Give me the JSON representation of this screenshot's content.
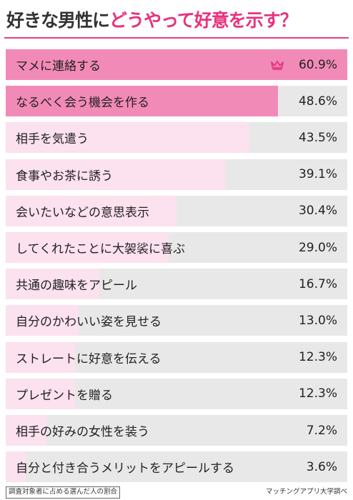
{
  "title_part1": "好きな男性に",
  "title_part2": "どうやって好意を示す？",
  "colors": {
    "accent": "#e8317d",
    "bar_top": "#f28ab7",
    "bar_other": "#fce1ee",
    "track": "#e8e8e8"
  },
  "chart_data": {
    "type": "bar",
    "orientation": "horizontal",
    "title": "好きな男性にどうやって好意を示す？",
    "categories": [
      "マメに連絡する",
      "なるべく会う機会を作る",
      "相手を気遣う",
      "食事やお茶に誘う",
      "会いたいなどの意思表示",
      "してくれたことに大袈裟に喜ぶ",
      "共通の趣味をアピール",
      "自分のかわいい姿を見せる",
      "ストレートに好意を伝える",
      "プレゼントを贈る",
      "相手の好みの女性を装う",
      "自分と付き合うメリットをアピールする"
    ],
    "values": [
      60.9,
      48.6,
      43.5,
      39.1,
      30.4,
      29.0,
      16.7,
      13.0,
      12.3,
      12.3,
      7.2,
      3.6
    ],
    "value_labels": [
      "60.9%",
      "48.6%",
      "43.5%",
      "39.1%",
      "30.4%",
      "29.0%",
      "16.7%",
      "13.0%",
      "12.3%",
      "12.3%",
      "7.2%",
      "3.6%"
    ],
    "xlim": [
      0,
      60.9
    ],
    "icons": [
      "crown-icon"
    ]
  },
  "footnote": "調査対象者に占める選んだ人の割合",
  "source": "マッチングアプリ大学調べ"
}
